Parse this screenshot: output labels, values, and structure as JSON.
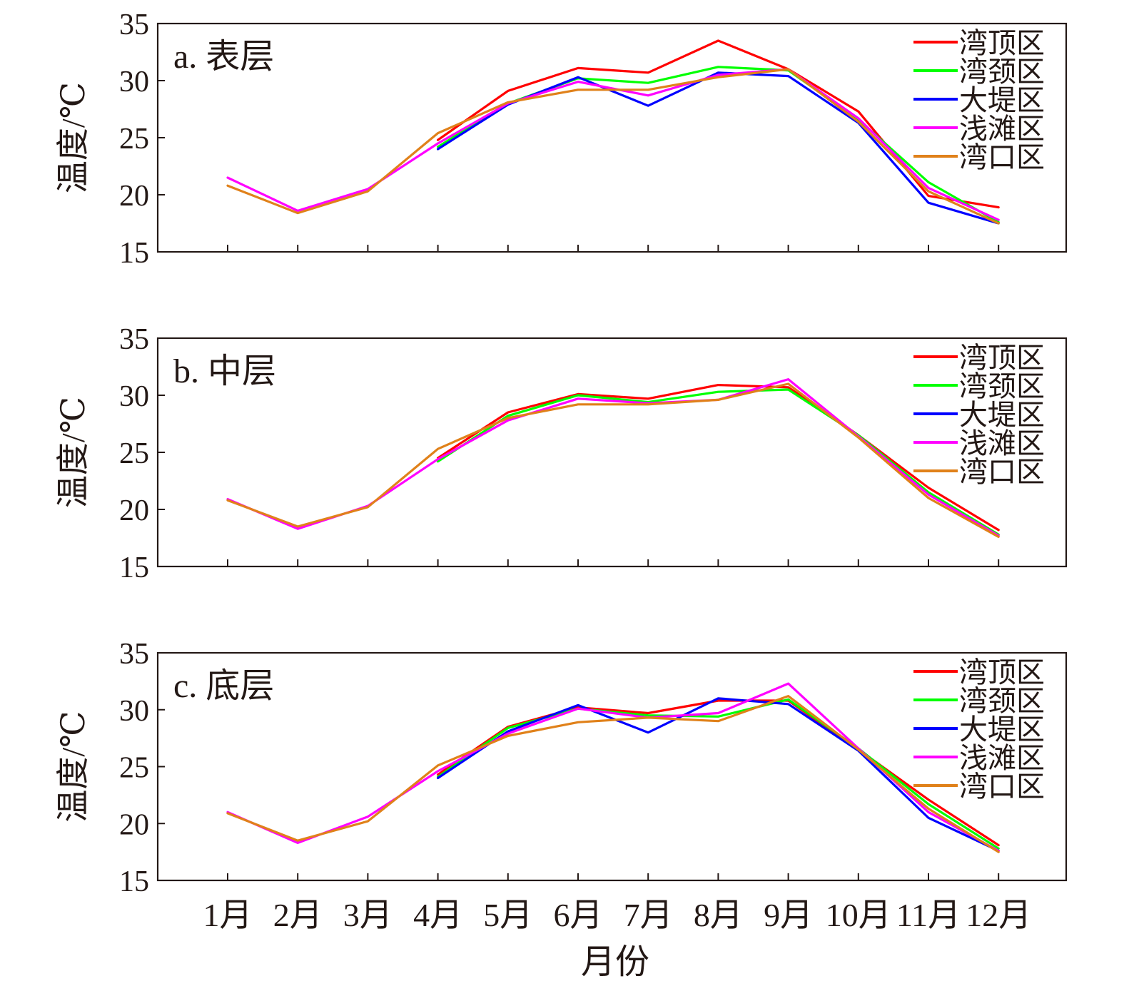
{
  "x_axis": {
    "label": "月份"
  },
  "chart_data": [
    {
      "type": "line",
      "title": "a. 表层",
      "ylabel": "温度/℃",
      "ylim": [
        15,
        35
      ],
      "yticks": [
        15,
        20,
        25,
        30,
        35
      ],
      "categories": [
        "1月",
        "2月",
        "3月",
        "4月",
        "5月",
        "6月",
        "7月",
        "8月",
        "9月",
        "10月",
        "11月",
        "12月"
      ],
      "legend_position": "top-right",
      "series": [
        {
          "name": "湾顶区",
          "color": "#ff0000",
          "values": [
            null,
            null,
            null,
            24.8,
            29.1,
            31.1,
            30.7,
            33.5,
            31.0,
            27.3,
            19.9,
            18.9
          ]
        },
        {
          "name": "湾颈区",
          "color": "#00ff00",
          "values": [
            null,
            null,
            null,
            24.2,
            28.0,
            30.2,
            29.8,
            31.2,
            30.9,
            26.6,
            21.1,
            17.6
          ]
        },
        {
          "name": "大堤区",
          "color": "#0000ff",
          "values": [
            null,
            null,
            null,
            24.0,
            27.9,
            30.3,
            27.8,
            30.7,
            30.4,
            26.3,
            19.3,
            17.5
          ]
        },
        {
          "name": "浅滩区",
          "color": "#ff00ff",
          "values": [
            21.5,
            18.6,
            20.5,
            24.5,
            28.0,
            29.9,
            28.7,
            30.5,
            31.0,
            26.7,
            20.6,
            17.8
          ]
        },
        {
          "name": "湾口区",
          "color": "#e0811a",
          "values": [
            20.8,
            18.4,
            20.3,
            25.4,
            28.1,
            29.2,
            29.2,
            30.3,
            31.0,
            26.4,
            20.3,
            17.5
          ]
        }
      ]
    },
    {
      "type": "line",
      "title": "b. 中层",
      "ylabel": "温度/℃",
      "ylim": [
        15,
        35
      ],
      "yticks": [
        15,
        20,
        25,
        30,
        35
      ],
      "categories": [
        "1月",
        "2月",
        "3月",
        "4月",
        "5月",
        "6月",
        "7月",
        "8月",
        "9月",
        "10月",
        "11月",
        "12月"
      ],
      "legend_position": "top-right",
      "series": [
        {
          "name": "湾顶区",
          "color": "#ff0000",
          "values": [
            null,
            null,
            null,
            24.5,
            28.5,
            30.1,
            29.7,
            30.9,
            30.7,
            26.5,
            21.9,
            18.2
          ]
        },
        {
          "name": "湾颈区",
          "color": "#00ff00",
          "values": [
            null,
            null,
            null,
            24.2,
            28.2,
            30.0,
            29.4,
            30.3,
            30.5,
            26.5,
            21.5,
            17.8
          ]
        },
        {
          "name": "大堤区",
          "color": "#0000ff",
          "values": [
            null,
            null,
            null,
            null,
            null,
            null,
            null,
            null,
            null,
            null,
            null,
            null
          ]
        },
        {
          "name": "浅滩区",
          "color": "#ff00ff",
          "values": [
            20.9,
            18.3,
            20.3,
            24.4,
            27.8,
            29.7,
            29.3,
            29.6,
            31.4,
            26.4,
            21.3,
            17.7
          ]
        },
        {
          "name": "湾口区",
          "color": "#e0811a",
          "values": [
            20.8,
            18.5,
            20.2,
            25.3,
            28.0,
            29.2,
            29.2,
            29.6,
            31.0,
            26.3,
            21.0,
            17.6
          ]
        }
      ]
    },
    {
      "type": "line",
      "title": "c. 底层",
      "ylabel": "温度/℃",
      "ylim": [
        15,
        35
      ],
      "yticks": [
        15,
        20,
        25,
        30,
        35
      ],
      "categories": [
        "1月",
        "2月",
        "3月",
        "4月",
        "5月",
        "6月",
        "7月",
        "8月",
        "9月",
        "10月",
        "11月",
        "12月"
      ],
      "legend_position": "top-right",
      "series": [
        {
          "name": "湾顶区",
          "color": "#ff0000",
          "values": [
            null,
            null,
            null,
            24.3,
            28.5,
            30.2,
            29.7,
            30.8,
            30.8,
            26.5,
            22.1,
            18.1
          ]
        },
        {
          "name": "湾颈区",
          "color": "#00ff00",
          "values": [
            null,
            null,
            null,
            24.1,
            28.4,
            30.1,
            29.5,
            29.4,
            30.9,
            26.6,
            21.7,
            17.8
          ]
        },
        {
          "name": "大堤区",
          "color": "#0000ff",
          "values": [
            null,
            null,
            null,
            24.0,
            28.1,
            30.4,
            28.0,
            31.0,
            30.5,
            26.4,
            20.5,
            17.6
          ]
        },
        {
          "name": "浅滩区",
          "color": "#ff00ff",
          "values": [
            21.0,
            18.3,
            20.6,
            24.6,
            27.9,
            30.1,
            29.3,
            29.7,
            32.3,
            26.6,
            21.0,
            17.6
          ]
        },
        {
          "name": "湾口区",
          "color": "#e0811a",
          "values": [
            20.9,
            18.5,
            20.2,
            25.1,
            27.7,
            28.9,
            29.3,
            29.0,
            31.2,
            26.5,
            21.3,
            17.5
          ]
        }
      ]
    }
  ]
}
